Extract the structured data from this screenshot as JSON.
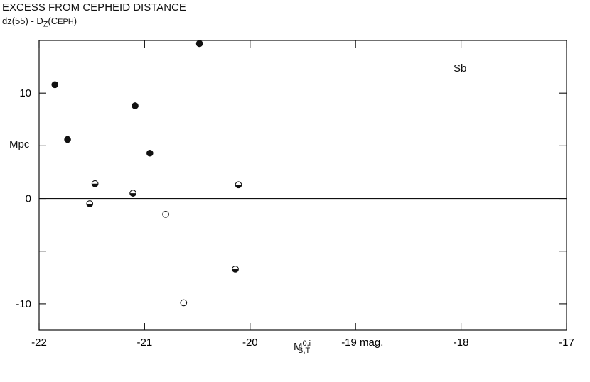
{
  "chart_data": {
    "type": "scatter",
    "title": "EXCESS FROM CEPHEID DISTANCE",
    "subtitle": {
      "prefix": "dz(55) - D",
      "sub": "Z",
      "suffix_open": "(C",
      "smallcaps": "EPH",
      "suffix_close": ")"
    },
    "ylabel": "Mpc",
    "xlabel": {
      "base": "M",
      "sup": "0,i",
      "sub": "B,T"
    },
    "panel_label": "Sb",
    "xlim": [
      -22,
      -17
    ],
    "ylim": [
      -12.5,
      15
    ],
    "x_ticks": [
      {
        "value": -22,
        "label": "-22"
      },
      {
        "value": -21,
        "label": "-21"
      },
      {
        "value": -20,
        "label": "-20"
      },
      {
        "value": -19,
        "label": "-19 mag."
      },
      {
        "value": -18,
        "label": "-18"
      },
      {
        "value": -17,
        "label": "-17"
      }
    ],
    "y_ticks": [
      {
        "value": 10,
        "label": "10"
      },
      {
        "value": 5,
        "label": ""
      },
      {
        "value": 0,
        "label": "0"
      },
      {
        "value": -5,
        "label": ""
      },
      {
        "value": -10,
        "label": "-10"
      }
    ],
    "zero_line": true,
    "grid": false,
    "series": [
      {
        "marker": "filled",
        "points": [
          {
            "x": -21.85,
            "y": 10.8
          },
          {
            "x": -21.73,
            "y": 5.6
          },
          {
            "x": -21.09,
            "y": 8.8
          },
          {
            "x": -20.95,
            "y": 4.3
          },
          {
            "x": -20.48,
            "y": 14.7
          }
        ]
      },
      {
        "marker": "half",
        "points": [
          {
            "x": -21.47,
            "y": 1.4
          },
          {
            "x": -21.11,
            "y": 0.5
          },
          {
            "x": -21.52,
            "y": -0.5
          },
          {
            "x": -20.11,
            "y": 1.3
          },
          {
            "x": -20.14,
            "y": -6.7
          }
        ]
      },
      {
        "marker": "open",
        "points": [
          {
            "x": -20.8,
            "y": -1.5
          },
          {
            "x": -20.63,
            "y": -9.9
          }
        ]
      }
    ]
  }
}
